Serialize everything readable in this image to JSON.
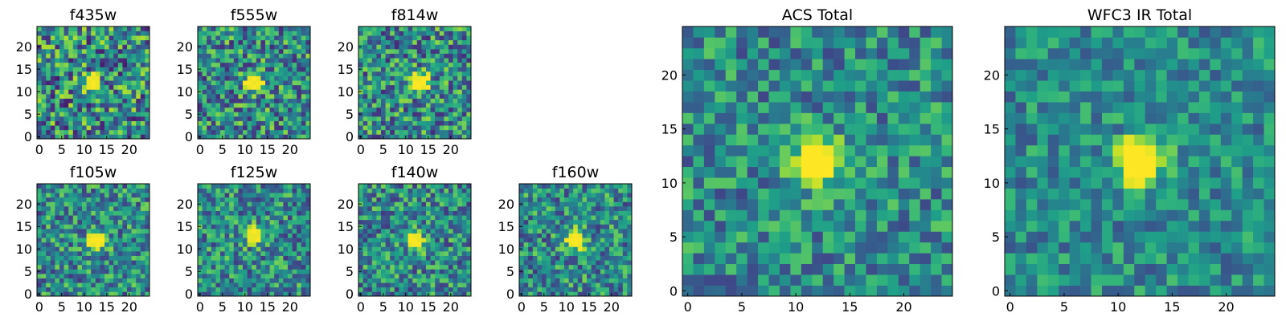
{
  "figure": {
    "background": "#ffffff"
  },
  "chart_data": [
    {
      "type": "heatmap",
      "title": "f435w",
      "colormap": "viridis",
      "xlim": [
        0,
        24
      ],
      "ylim": [
        0,
        24
      ],
      "xticks": [
        "0",
        "5",
        "10",
        "15",
        "20"
      ],
      "yticks": [
        "0",
        "5",
        "10",
        "15",
        "20"
      ],
      "peak": {
        "x": 12,
        "y": 12
      },
      "signal_strength": 0.25,
      "noise_level": 0.45,
      "noise_seed": 11
    },
    {
      "type": "heatmap",
      "title": "f555w",
      "colormap": "viridis",
      "xlim": [
        0,
        24
      ],
      "ylim": [
        0,
        24
      ],
      "xticks": [
        "0",
        "5",
        "10",
        "15",
        "20"
      ],
      "yticks": [
        "0",
        "5",
        "10",
        "15",
        "20"
      ],
      "peak": {
        "x": 12,
        "y": 12
      },
      "signal_strength": 0.45,
      "noise_level": 0.4,
      "noise_seed": 23
    },
    {
      "type": "heatmap",
      "title": "f814w",
      "colormap": "viridis",
      "xlim": [
        0,
        24
      ],
      "ylim": [
        0,
        24
      ],
      "xticks": [
        "0",
        "5",
        "10",
        "15",
        "20"
      ],
      "yticks": [
        "0",
        "5",
        "10",
        "15",
        "20"
      ],
      "peak": {
        "x": 13,
        "y": 12
      },
      "signal_strength": 0.6,
      "noise_level": 0.4,
      "noise_seed": 37
    },
    {
      "type": "heatmap",
      "title": "f105w",
      "colormap": "viridis",
      "xlim": [
        0,
        24
      ],
      "ylim": [
        0,
        24
      ],
      "xticks": [
        "0",
        "5",
        "10",
        "15",
        "20"
      ],
      "yticks": [
        "0",
        "5",
        "10",
        "15",
        "20"
      ],
      "peak": {
        "x": 13,
        "y": 12
      },
      "signal_strength": 0.45,
      "noise_level": 0.35,
      "noise_seed": 41
    },
    {
      "type": "heatmap",
      "title": "f125w",
      "colormap": "viridis",
      "xlim": [
        0,
        24
      ],
      "ylim": [
        0,
        24
      ],
      "xticks": [
        "0",
        "5",
        "10",
        "15",
        "20"
      ],
      "yticks": [
        "0",
        "5",
        "10",
        "15",
        "20"
      ],
      "peak": {
        "x": 12,
        "y": 13
      },
      "signal_strength": 0.3,
      "noise_level": 0.35,
      "noise_seed": 53
    },
    {
      "type": "heatmap",
      "title": "f140w",
      "colormap": "viridis",
      "xlim": [
        0,
        24
      ],
      "ylim": [
        0,
        24
      ],
      "xticks": [
        "0",
        "5",
        "10",
        "15",
        "20"
      ],
      "yticks": [
        "0",
        "5",
        "10",
        "15",
        "20"
      ],
      "peak": {
        "x": 12,
        "y": 12
      },
      "signal_strength": 0.4,
      "noise_level": 0.35,
      "noise_seed": 67
    },
    {
      "type": "heatmap",
      "title": "f160w",
      "colormap": "viridis",
      "xlim": [
        0,
        24
      ],
      "ylim": [
        0,
        24
      ],
      "xticks": [
        "0",
        "5",
        "10",
        "15",
        "20"
      ],
      "yticks": [
        "0",
        "5",
        "10",
        "15",
        "20"
      ],
      "peak": {
        "x": 12,
        "y": 12
      },
      "signal_strength": 0.55,
      "noise_level": 0.35,
      "noise_seed": 79
    },
    {
      "type": "heatmap",
      "title": "ACS Total",
      "colormap": "viridis",
      "xlim": [
        0,
        24
      ],
      "ylim": [
        0,
        24
      ],
      "xticks": [
        "0",
        "5",
        "10",
        "15",
        "20"
      ],
      "yticks": [
        "0",
        "5",
        "10",
        "15",
        "20"
      ],
      "peak": {
        "x": 12,
        "y": 12
      },
      "signal_strength": 0.65,
      "noise_level": 0.3,
      "noise_seed": 97
    },
    {
      "type": "heatmap",
      "title": "WFC3 IR Total",
      "colormap": "viridis",
      "xlim": [
        0,
        24
      ],
      "ylim": [
        0,
        24
      ],
      "xticks": [
        "0",
        "5",
        "10",
        "15",
        "20"
      ],
      "yticks": [
        "0",
        "5",
        "10",
        "15",
        "20"
      ],
      "peak": {
        "x": 12,
        "y": 12
      },
      "signal_strength": 0.55,
      "noise_level": 0.25,
      "noise_seed": 113
    }
  ]
}
